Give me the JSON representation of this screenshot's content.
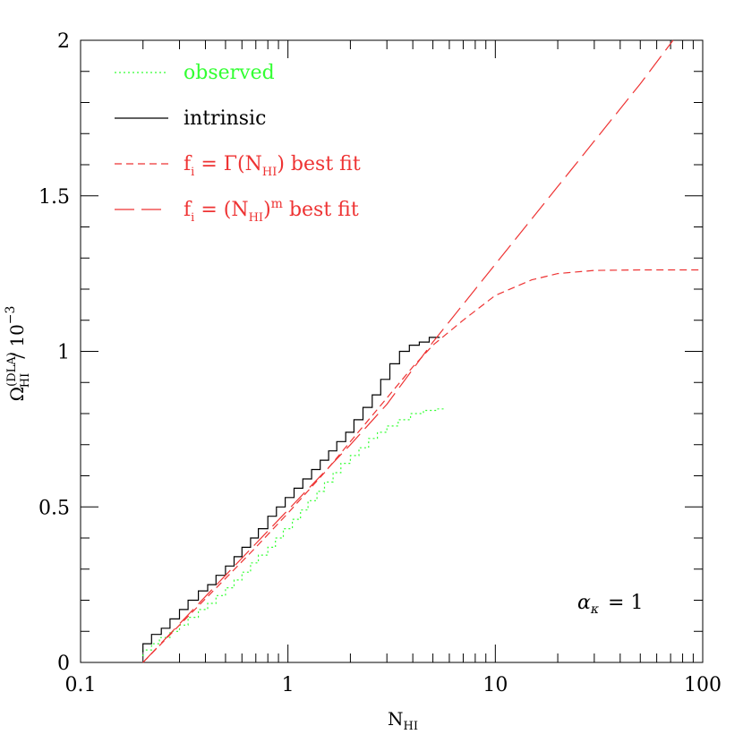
{
  "chart_data": {
    "type": "line",
    "xscale": "log",
    "xlim": [
      0.1,
      100
    ],
    "ylim": [
      0,
      2
    ],
    "xticks": [
      {
        "value": 0.1,
        "label": "0.1"
      },
      {
        "value": 1,
        "label": "1"
      },
      {
        "value": 10,
        "label": "10"
      },
      {
        "value": 100,
        "label": "100"
      }
    ],
    "yticks": [
      {
        "value": 0,
        "label": "0"
      },
      {
        "value": 0.5,
        "label": "0.5"
      },
      {
        "value": 1,
        "label": "1"
      },
      {
        "value": 1.5,
        "label": "1.5"
      },
      {
        "value": 2,
        "label": "2"
      }
    ],
    "xlabel": {
      "base": "N",
      "sub": "HI"
    },
    "ylabel": {
      "base": "Ω",
      "sub": "HI",
      "sup": "(DLA)",
      "tail": "/ 10",
      "tail_sup": "−3"
    },
    "grid": false,
    "legend_position": "top-left",
    "annotation": {
      "greek": "α",
      "sub": "κ",
      "text": "=  1"
    },
    "series": [
      {
        "id": "observed",
        "label_parts": [
          {
            "t": "observed"
          }
        ],
        "color": "#33ff33",
        "dash": "2,3",
        "step": true,
        "points": [
          [
            0.2,
            0.02
          ],
          [
            0.22,
            0.04
          ],
          [
            0.24,
            0.06
          ],
          [
            0.27,
            0.08
          ],
          [
            0.3,
            0.1
          ],
          [
            0.33,
            0.12
          ],
          [
            0.37,
            0.145
          ],
          [
            0.41,
            0.17
          ],
          [
            0.45,
            0.19
          ],
          [
            0.5,
            0.215
          ],
          [
            0.55,
            0.24
          ],
          [
            0.6,
            0.265
          ],
          [
            0.66,
            0.29
          ],
          [
            0.72,
            0.32
          ],
          [
            0.8,
            0.345
          ],
          [
            0.87,
            0.37
          ],
          [
            0.95,
            0.4
          ],
          [
            1.05,
            0.43
          ],
          [
            1.15,
            0.46
          ],
          [
            1.25,
            0.49
          ],
          [
            1.38,
            0.52
          ],
          [
            1.5,
            0.55
          ],
          [
            1.65,
            0.58
          ],
          [
            1.8,
            0.61
          ],
          [
            2.0,
            0.64
          ],
          [
            2.2,
            0.665
          ],
          [
            2.45,
            0.69
          ],
          [
            2.7,
            0.72
          ],
          [
            3.0,
            0.74
          ],
          [
            3.4,
            0.76
          ],
          [
            3.9,
            0.78
          ],
          [
            4.5,
            0.8
          ],
          [
            5.2,
            0.81
          ],
          [
            5.8,
            0.815
          ]
        ]
      },
      {
        "id": "intrinsic",
        "label_parts": [
          {
            "t": "intrinsic"
          }
        ],
        "color": "#000000",
        "dash": "",
        "step": true,
        "points": [
          [
            0.2,
            0.03
          ],
          [
            0.22,
            0.06
          ],
          [
            0.245,
            0.09
          ],
          [
            0.27,
            0.11
          ],
          [
            0.3,
            0.14
          ],
          [
            0.33,
            0.17
          ],
          [
            0.37,
            0.2
          ],
          [
            0.41,
            0.23
          ],
          [
            0.45,
            0.25
          ],
          [
            0.5,
            0.28
          ],
          [
            0.55,
            0.31
          ],
          [
            0.6,
            0.34
          ],
          [
            0.66,
            0.37
          ],
          [
            0.72,
            0.4
          ],
          [
            0.8,
            0.43
          ],
          [
            0.88,
            0.47
          ],
          [
            0.97,
            0.5
          ],
          [
            1.07,
            0.53
          ],
          [
            1.18,
            0.56
          ],
          [
            1.3,
            0.59
          ],
          [
            1.43,
            0.62
          ],
          [
            1.57,
            0.65
          ],
          [
            1.72,
            0.68
          ],
          [
            1.9,
            0.71
          ],
          [
            2.08,
            0.74
          ],
          [
            2.3,
            0.78
          ],
          [
            2.55,
            0.82
          ],
          [
            2.8,
            0.86
          ],
          [
            3.1,
            0.91
          ],
          [
            3.45,
            0.96
          ],
          [
            3.85,
            1.0
          ],
          [
            4.3,
            1.02
          ],
          [
            4.8,
            1.03
          ],
          [
            5.4,
            1.045
          ]
        ]
      },
      {
        "id": "gamma-fit",
        "label_parts": [
          {
            "t": "f"
          },
          {
            "t": "i",
            "sub": true
          },
          {
            "t": " = Γ(N"
          },
          {
            "t": "HI",
            "sub": true
          },
          {
            "t": ") best fit"
          }
        ],
        "color": "#ee3333",
        "dash": "8,5",
        "step": false,
        "points": [
          [
            0.2,
            0.0
          ],
          [
            0.3,
            0.12
          ],
          [
            0.5,
            0.27
          ],
          [
            0.7,
            0.37
          ],
          [
            1.0,
            0.48
          ],
          [
            1.5,
            0.61
          ],
          [
            2.0,
            0.71
          ],
          [
            3.0,
            0.85
          ],
          [
            4.0,
            0.95
          ],
          [
            5.0,
            1.02
          ],
          [
            7.0,
            1.1
          ],
          [
            10.0,
            1.18
          ],
          [
            15.0,
            1.23
          ],
          [
            20.0,
            1.25
          ],
          [
            30.0,
            1.26
          ],
          [
            50.0,
            1.262
          ],
          [
            100.0,
            1.262
          ]
        ]
      },
      {
        "id": "power-fit",
        "label_parts": [
          {
            "t": "f"
          },
          {
            "t": "i",
            "sub": true
          },
          {
            "t": " = (N"
          },
          {
            "t": "HI",
            "sub": true
          },
          {
            "t": ")"
          },
          {
            "t": "m",
            "sup": true
          },
          {
            "t": " best fit"
          }
        ],
        "color": "#ee3333",
        "dash": "22,8",
        "step": false,
        "points": [
          [
            0.2,
            0.0
          ],
          [
            0.5,
            0.28
          ],
          [
            1.0,
            0.49
          ],
          [
            2.0,
            0.7
          ],
          [
            3.0,
            0.83
          ],
          [
            5.0,
            1.03
          ],
          [
            10.0,
            1.28
          ],
          [
            20.0,
            1.53
          ],
          [
            50.0,
            1.86
          ],
          [
            72.0,
            2.0
          ]
        ]
      }
    ]
  }
}
